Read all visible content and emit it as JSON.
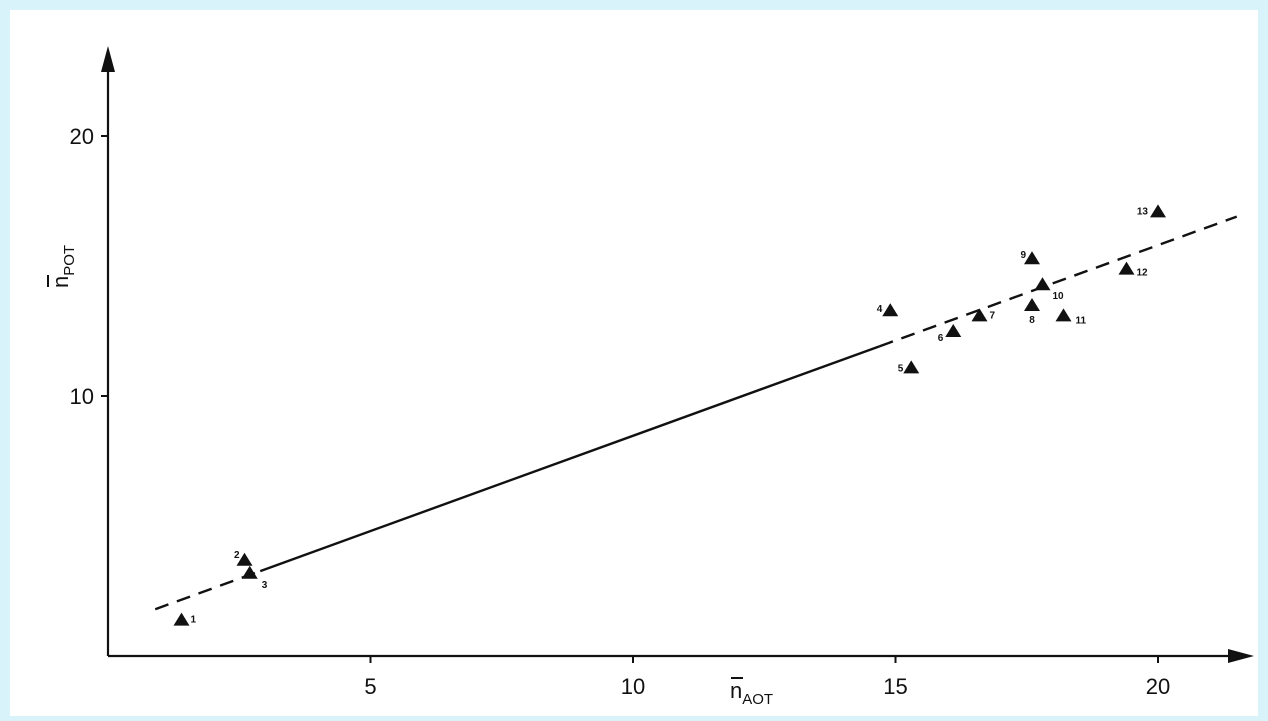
{
  "chart_data": {
    "type": "scatter",
    "title": "",
    "xlabel": {
      "main": "n",
      "sub": "AOT"
    },
    "ylabel": {
      "main": "n",
      "sub": "POT"
    },
    "xlim": [
      0,
      22
    ],
    "ylim": [
      0,
      24
    ],
    "x_ticks": [
      5,
      10,
      15,
      20
    ],
    "y_ticks": [
      10,
      20
    ],
    "grid": false,
    "legend": "none",
    "marker": "triangle",
    "color": "#111111",
    "points": [
      {
        "label": "1",
        "x": 1.4,
        "y": 1.4
      },
      {
        "label": "2",
        "x": 2.6,
        "y": 3.7
      },
      {
        "label": "3",
        "x": 2.7,
        "y": 3.2
      },
      {
        "label": "4",
        "x": 14.9,
        "y": 13.3
      },
      {
        "label": "5",
        "x": 15.3,
        "y": 11.1
      },
      {
        "label": "6",
        "x": 16.1,
        "y": 12.5
      },
      {
        "label": "7",
        "x": 16.6,
        "y": 13.1
      },
      {
        "label": "8",
        "x": 17.6,
        "y": 13.5
      },
      {
        "label": "9",
        "x": 17.6,
        "y": 15.3
      },
      {
        "label": "10",
        "x": 17.8,
        "y": 14.3
      },
      {
        "label": "11",
        "x": 18.2,
        "y": 13.1
      },
      {
        "label": "12",
        "x": 19.4,
        "y": 14.9
      },
      {
        "label": "13",
        "x": 20.0,
        "y": 17.1
      }
    ],
    "fit_line": {
      "style": "dashed-solid",
      "x": [
        0.9,
        21.5
      ],
      "y": [
        1.8,
        16.9
      ]
    }
  }
}
